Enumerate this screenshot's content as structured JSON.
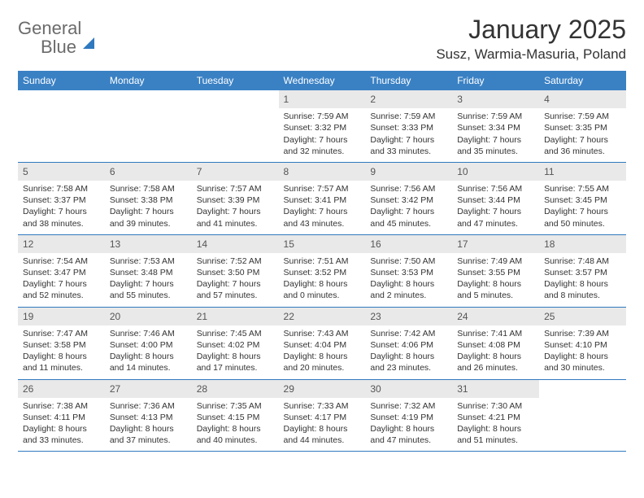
{
  "brand": {
    "word1": "General",
    "word2": "Blue"
  },
  "title": {
    "month": "January 2025",
    "location": "Susz, Warmia-Masuria, Poland"
  },
  "colors": {
    "header_bg": "#3a81c4",
    "header_text": "#ffffff",
    "rule": "#2f79bf",
    "daynum_bg": "#e9e9e9",
    "body_text": "#333333",
    "logo_gray": "#6b6b6b",
    "logo_blue": "#2f79bf"
  },
  "weekdays": [
    "Sunday",
    "Monday",
    "Tuesday",
    "Wednesday",
    "Thursday",
    "Friday",
    "Saturday"
  ],
  "weeks": [
    [
      {
        "n": "",
        "l": [
          "",
          "",
          "",
          ""
        ],
        "empty": true
      },
      {
        "n": "",
        "l": [
          "",
          "",
          "",
          ""
        ],
        "empty": true
      },
      {
        "n": "",
        "l": [
          "",
          "",
          "",
          ""
        ],
        "empty": true
      },
      {
        "n": "1",
        "l": [
          "Sunrise: 7:59 AM",
          "Sunset: 3:32 PM",
          "Daylight: 7 hours",
          "and 32 minutes."
        ]
      },
      {
        "n": "2",
        "l": [
          "Sunrise: 7:59 AM",
          "Sunset: 3:33 PM",
          "Daylight: 7 hours",
          "and 33 minutes."
        ]
      },
      {
        "n": "3",
        "l": [
          "Sunrise: 7:59 AM",
          "Sunset: 3:34 PM",
          "Daylight: 7 hours",
          "and 35 minutes."
        ]
      },
      {
        "n": "4",
        "l": [
          "Sunrise: 7:59 AM",
          "Sunset: 3:35 PM",
          "Daylight: 7 hours",
          "and 36 minutes."
        ]
      }
    ],
    [
      {
        "n": "5",
        "l": [
          "Sunrise: 7:58 AM",
          "Sunset: 3:37 PM",
          "Daylight: 7 hours",
          "and 38 minutes."
        ]
      },
      {
        "n": "6",
        "l": [
          "Sunrise: 7:58 AM",
          "Sunset: 3:38 PM",
          "Daylight: 7 hours",
          "and 39 minutes."
        ]
      },
      {
        "n": "7",
        "l": [
          "Sunrise: 7:57 AM",
          "Sunset: 3:39 PM",
          "Daylight: 7 hours",
          "and 41 minutes."
        ]
      },
      {
        "n": "8",
        "l": [
          "Sunrise: 7:57 AM",
          "Sunset: 3:41 PM",
          "Daylight: 7 hours",
          "and 43 minutes."
        ]
      },
      {
        "n": "9",
        "l": [
          "Sunrise: 7:56 AM",
          "Sunset: 3:42 PM",
          "Daylight: 7 hours",
          "and 45 minutes."
        ]
      },
      {
        "n": "10",
        "l": [
          "Sunrise: 7:56 AM",
          "Sunset: 3:44 PM",
          "Daylight: 7 hours",
          "and 47 minutes."
        ]
      },
      {
        "n": "11",
        "l": [
          "Sunrise: 7:55 AM",
          "Sunset: 3:45 PM",
          "Daylight: 7 hours",
          "and 50 minutes."
        ]
      }
    ],
    [
      {
        "n": "12",
        "l": [
          "Sunrise: 7:54 AM",
          "Sunset: 3:47 PM",
          "Daylight: 7 hours",
          "and 52 minutes."
        ]
      },
      {
        "n": "13",
        "l": [
          "Sunrise: 7:53 AM",
          "Sunset: 3:48 PM",
          "Daylight: 7 hours",
          "and 55 minutes."
        ]
      },
      {
        "n": "14",
        "l": [
          "Sunrise: 7:52 AM",
          "Sunset: 3:50 PM",
          "Daylight: 7 hours",
          "and 57 minutes."
        ]
      },
      {
        "n": "15",
        "l": [
          "Sunrise: 7:51 AM",
          "Sunset: 3:52 PM",
          "Daylight: 8 hours",
          "and 0 minutes."
        ]
      },
      {
        "n": "16",
        "l": [
          "Sunrise: 7:50 AM",
          "Sunset: 3:53 PM",
          "Daylight: 8 hours",
          "and 2 minutes."
        ]
      },
      {
        "n": "17",
        "l": [
          "Sunrise: 7:49 AM",
          "Sunset: 3:55 PM",
          "Daylight: 8 hours",
          "and 5 minutes."
        ]
      },
      {
        "n": "18",
        "l": [
          "Sunrise: 7:48 AM",
          "Sunset: 3:57 PM",
          "Daylight: 8 hours",
          "and 8 minutes."
        ]
      }
    ],
    [
      {
        "n": "19",
        "l": [
          "Sunrise: 7:47 AM",
          "Sunset: 3:58 PM",
          "Daylight: 8 hours",
          "and 11 minutes."
        ]
      },
      {
        "n": "20",
        "l": [
          "Sunrise: 7:46 AM",
          "Sunset: 4:00 PM",
          "Daylight: 8 hours",
          "and 14 minutes."
        ]
      },
      {
        "n": "21",
        "l": [
          "Sunrise: 7:45 AM",
          "Sunset: 4:02 PM",
          "Daylight: 8 hours",
          "and 17 minutes."
        ]
      },
      {
        "n": "22",
        "l": [
          "Sunrise: 7:43 AM",
          "Sunset: 4:04 PM",
          "Daylight: 8 hours",
          "and 20 minutes."
        ]
      },
      {
        "n": "23",
        "l": [
          "Sunrise: 7:42 AM",
          "Sunset: 4:06 PM",
          "Daylight: 8 hours",
          "and 23 minutes."
        ]
      },
      {
        "n": "24",
        "l": [
          "Sunrise: 7:41 AM",
          "Sunset: 4:08 PM",
          "Daylight: 8 hours",
          "and 26 minutes."
        ]
      },
      {
        "n": "25",
        "l": [
          "Sunrise: 7:39 AM",
          "Sunset: 4:10 PM",
          "Daylight: 8 hours",
          "and 30 minutes."
        ]
      }
    ],
    [
      {
        "n": "26",
        "l": [
          "Sunrise: 7:38 AM",
          "Sunset: 4:11 PM",
          "Daylight: 8 hours",
          "and 33 minutes."
        ]
      },
      {
        "n": "27",
        "l": [
          "Sunrise: 7:36 AM",
          "Sunset: 4:13 PM",
          "Daylight: 8 hours",
          "and 37 minutes."
        ]
      },
      {
        "n": "28",
        "l": [
          "Sunrise: 7:35 AM",
          "Sunset: 4:15 PM",
          "Daylight: 8 hours",
          "and 40 minutes."
        ]
      },
      {
        "n": "29",
        "l": [
          "Sunrise: 7:33 AM",
          "Sunset: 4:17 PM",
          "Daylight: 8 hours",
          "and 44 minutes."
        ]
      },
      {
        "n": "30",
        "l": [
          "Sunrise: 7:32 AM",
          "Sunset: 4:19 PM",
          "Daylight: 8 hours",
          "and 47 minutes."
        ]
      },
      {
        "n": "31",
        "l": [
          "Sunrise: 7:30 AM",
          "Sunset: 4:21 PM",
          "Daylight: 8 hours",
          "and 51 minutes."
        ]
      },
      {
        "n": "",
        "l": [
          "",
          "",
          "",
          ""
        ],
        "empty": true
      }
    ]
  ]
}
